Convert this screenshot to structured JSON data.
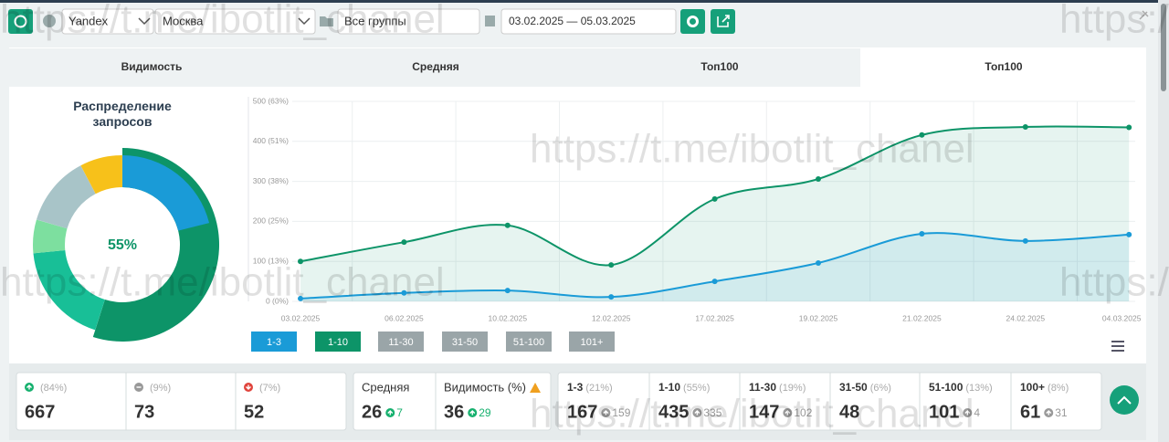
{
  "toolbar": {
    "engine": "Yandex",
    "region": "Москва",
    "group": "Все группы",
    "date_range": "03.02.2025 — 05.03.2025"
  },
  "tabs": [
    "Видимость",
    "Средняя",
    "Топ100",
    "Топ100"
  ],
  "watermark": "https://t.me/ibotlit_chanel",
  "chart_data": [
    {
      "type": "donut",
      "title": "Распределение запросов",
      "center_label": "55%",
      "colors": [
        "#1a9bd7",
        "#0d9468",
        "#18bf97",
        "#7ddf9f",
        "#a8c4c8",
        "#f7c11a"
      ]
    },
    {
      "type": "line",
      "categories": [
        "03.02.2025",
        "06.02.2025",
        "10.02.2025",
        "12.02.2025",
        "17.02.2025",
        "19.02.2025",
        "21.02.2025",
        "24.02.2025",
        "04.03.2025"
      ],
      "series": [
        {
          "name": "1-3",
          "color": "#1a9bd7",
          "values": [
            7,
            21,
            27,
            11,
            50,
            96,
            169,
            151,
            167
          ]
        },
        {
          "name": "1-10",
          "color": "#0d9468",
          "values": [
            100,
            148,
            190,
            91,
            256,
            306,
            416,
            436,
            435
          ]
        }
      ],
      "inactive_legend": [
        "11-30",
        "31-50",
        "51-100",
        "101+"
      ],
      "ylim": [
        0,
        500
      ],
      "yticks": [
        {
          "value": 0,
          "label": "0 (0%)"
        },
        {
          "value": 100,
          "label": "100 (13%)"
        },
        {
          "value": 200,
          "label": "200 (25%)"
        },
        {
          "value": 300,
          "label": "300 (38%)"
        },
        {
          "value": 400,
          "label": "400 (51%)"
        },
        {
          "value": 500,
          "label": "500 (63%)"
        }
      ],
      "grid": true
    }
  ],
  "stats": {
    "summary": [
      {
        "trend": "up",
        "pct": "(84%)",
        "value": 667
      },
      {
        "trend": "flat",
        "pct": "(9%)",
        "value": 73
      },
      {
        "trend": "down",
        "pct": "(7%)",
        "value": 52
      }
    ],
    "metrics": [
      {
        "label": "Средняя",
        "value": 26,
        "change": 7
      },
      {
        "label": "Видимость (%)",
        "value": 36,
        "change": 29,
        "warning": true
      }
    ],
    "positions": [
      {
        "label": "1-3",
        "pct": "(21%)",
        "value": 167,
        "change": 159
      },
      {
        "label": "1-10",
        "pct": "(55%)",
        "value": 435,
        "change": 335
      },
      {
        "label": "11-30",
        "pct": "(19%)",
        "value": 147,
        "change": 102
      },
      {
        "label": "31-50",
        "pct": "(6%)",
        "value": 48
      },
      {
        "label": "51-100",
        "pct": "(13%)",
        "value": 101,
        "change": 4
      },
      {
        "label": "100+",
        "pct": "(8%)",
        "value": 61,
        "change": 31
      }
    ]
  }
}
